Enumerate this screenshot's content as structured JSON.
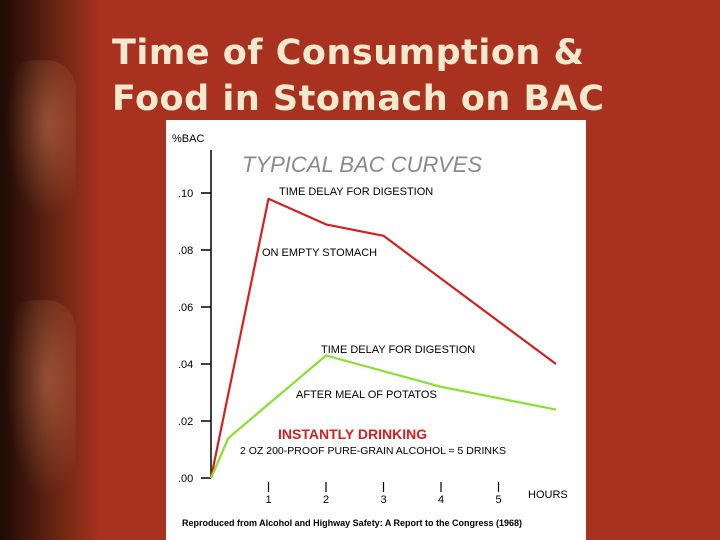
{
  "slide": {
    "title_line1": "Time of Consumption &",
    "title_line2": "Food in Stomach on BAC"
  },
  "chart_data": {
    "type": "line",
    "title": "TYPICAL BAC CURVES",
    "ylabel": "%BAC",
    "xlabel": "HOURS",
    "y_ticks": [
      ".00",
      ".02",
      ".04",
      ".06",
      ".08",
      ".10"
    ],
    "y_tick_values": [
      0,
      0.02,
      0.04,
      0.06,
      0.08,
      0.1
    ],
    "x_ticks": [
      "1",
      "2",
      "3",
      "4",
      "5"
    ],
    "x_tick_values": [
      1,
      2,
      3,
      4,
      5
    ],
    "xlim": [
      0,
      6
    ],
    "ylim": [
      0,
      0.1
    ],
    "series": [
      {
        "color": "#d42020",
        "label_top": "TIME DELAY FOR DIGESTION",
        "label_bottom": "ON EMPTY STOMACH",
        "points": [
          [
            0,
            0
          ],
          [
            1,
            0.098
          ],
          [
            2,
            0.089
          ],
          [
            3,
            0.085
          ],
          [
            6,
            0.04
          ]
        ]
      },
      {
        "color": "#88e030",
        "label_top": "TIME DELAY FOR DIGESTION",
        "label_bottom": "AFTER MEAL OF POTATOS",
        "points": [
          [
            0,
            0
          ],
          [
            0.3,
            0.014
          ],
          [
            2,
            0.043
          ],
          [
            4,
            0.032
          ],
          [
            6,
            0.024
          ]
        ]
      }
    ],
    "annotations": {
      "instantly": "INSTANTLY DRINKING",
      "dose": "2 OZ 200-PROOF PURE-GRAIN ALCOHOL = 5 DRINKS",
      "source": "Reproduced from Alcohol and Highway Safety: A Report to the Congress (1968)"
    },
    "colors": {
      "title": "#8a8a8a",
      "instantly": "#d42020",
      "axis": "#000000"
    }
  }
}
